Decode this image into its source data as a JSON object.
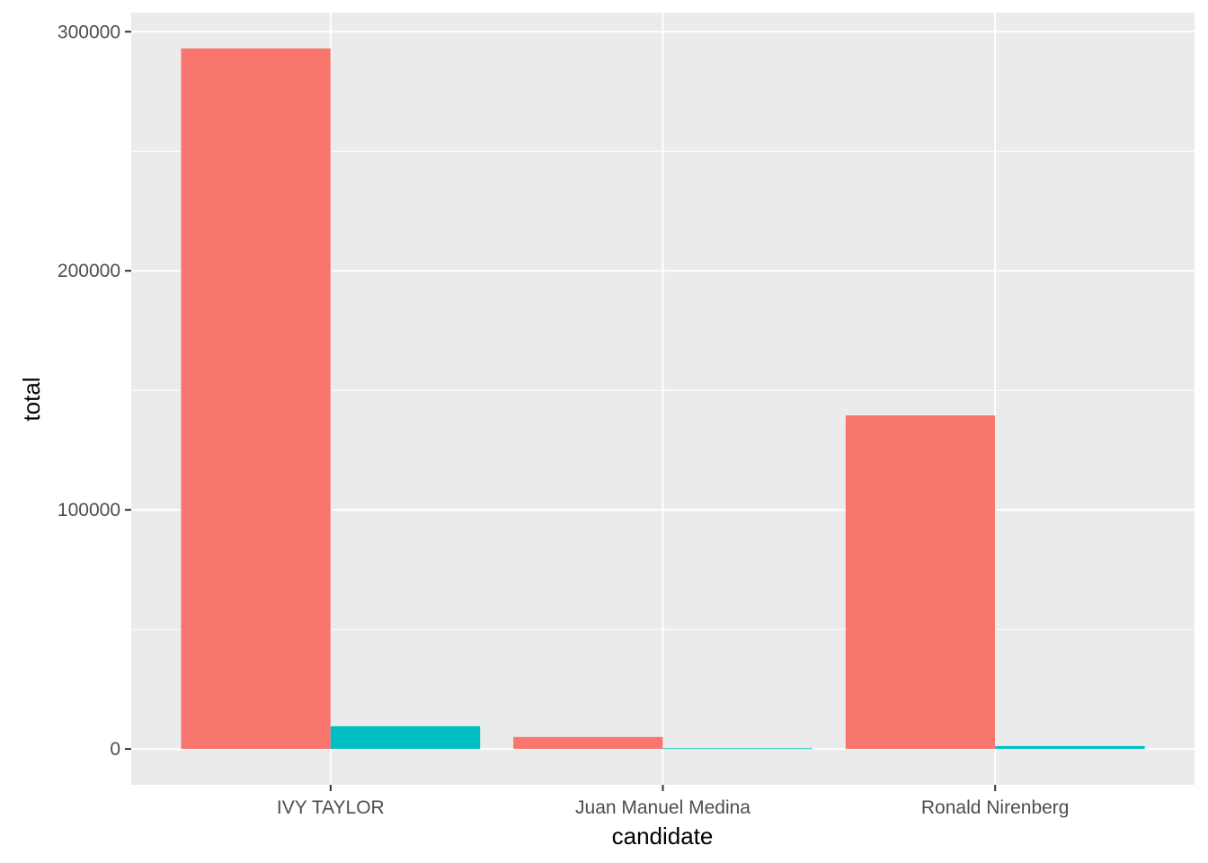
{
  "chart_data": {
    "type": "bar",
    "xlabel": "candidate",
    "ylabel": "total",
    "categories": [
      "IVY TAYLOR",
      "Juan Manuel Medina",
      "Ronald Nirenberg"
    ],
    "series": [
      {
        "values": [
          293000,
          5000,
          139500
        ],
        "color": "#F8766D"
      },
      {
        "values": [
          9500,
          300,
          1200
        ],
        "color": "#00BFC4"
      }
    ],
    "ylim": [
      -15000,
      308000
    ],
    "y_ticks": [
      0,
      100000,
      200000,
      300000
    ],
    "y_tick_labels": [
      "0",
      "100000",
      "200000",
      "300000"
    ],
    "y_minor_ticks": [
      50000,
      150000,
      250000
    ],
    "grid": true,
    "panel_background": "#EBEBEB",
    "grid_color": "#FFFFFF",
    "legend": "none"
  }
}
